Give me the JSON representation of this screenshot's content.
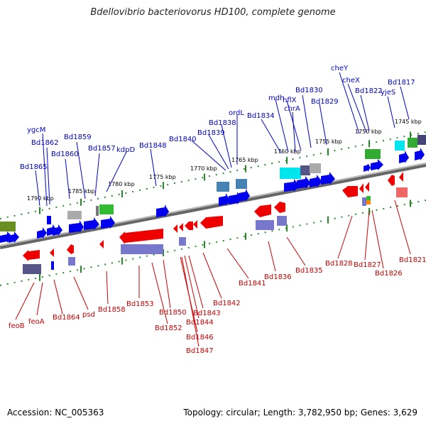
{
  "title": "Bdellovibrio bacteriovorus HD100, complete genome",
  "accession": "Accession: NC_005363",
  "summary": "Topology: circular; Length: 3,782,950 bp; Genes: 3,629",
  "kbp_labels": [
    "1790 kbp",
    "1785 kbp",
    "1780 kbp",
    "1775 kbp",
    "1770 kbp",
    "1765 kbp",
    "1760 kbp",
    "1755 kbp",
    "1750 kbp",
    "1745 kbp"
  ],
  "forward_labels": [
    "ygcM",
    "Bd1862",
    "Bd1865",
    "Bd1860",
    "Bd1859",
    "Bd1857",
    "kdpD",
    "Bd1848",
    "Bd1840",
    "Bd1839",
    "Bd1838",
    "ordL",
    "Bd1834",
    "mdh",
    "hflX",
    "Bd1830",
    "chrA",
    "Bd1829",
    "cheY",
    "cheX",
    "Bd1822",
    "yjeS",
    "Bd1817"
  ],
  "reverse_labels": [
    "feoB",
    "feoA",
    "Bd1864",
    "psd",
    "Bd1858",
    "Bd1853",
    "Bd1852",
    "Bd1850",
    "Bd1846",
    "Bd1847",
    "Bd1844",
    "Bd1843",
    "Bd1842",
    "Bd1841",
    "Bd1836",
    "Bd1835",
    "Bd1828",
    "Bd1827",
    "Bd1826",
    "Bd1821"
  ],
  "colors": {
    "forward": "#0000ee",
    "reverse": "#ee0000",
    "backbone": "#888888",
    "tick": "#228b22"
  }
}
